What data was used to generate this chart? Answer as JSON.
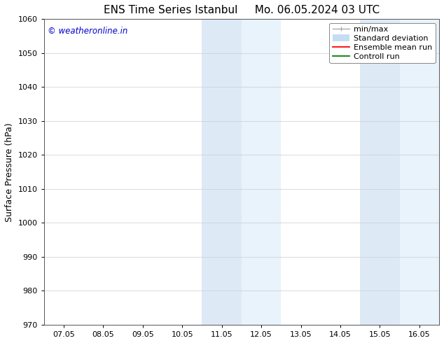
{
  "title_left": "ENS Time Series Istanbul",
  "title_right": "Mo. 06.05.2024 03 UTC",
  "ylabel": "Surface Pressure (hPa)",
  "ylim": [
    970,
    1060
  ],
  "yticks": [
    970,
    980,
    990,
    1000,
    1010,
    1020,
    1030,
    1040,
    1050,
    1060
  ],
  "xtick_labels": [
    "07.05",
    "08.05",
    "09.05",
    "10.05",
    "11.05",
    "12.05",
    "13.05",
    "14.05",
    "15.05",
    "16.05"
  ],
  "xtick_positions": [
    0,
    1,
    2,
    3,
    4,
    5,
    6,
    7,
    8,
    9
  ],
  "xlim_min": -0.5,
  "xlim_max": 9.5,
  "shaded_regions": [
    {
      "xmin": 3.5,
      "xmax": 4.5,
      "color": "#ddeaf6"
    },
    {
      "xmin": 4.5,
      "xmax": 5.5,
      "color": "#e8f3fb"
    },
    {
      "xmin": 7.5,
      "xmax": 8.5,
      "color": "#ddeaf6"
    },
    {
      "xmin": 8.5,
      "xmax": 9.5,
      "color": "#e8f3fb"
    }
  ],
  "watermark": "© weatheronline.in",
  "watermark_color": "#0000cc",
  "background_color": "#ffffff",
  "plot_bg_color": "#ffffff",
  "grid_color": "#cccccc",
  "tick_label_color": "#000000",
  "title_color": "#000000",
  "title_fontsize": 11,
  "tick_fontsize": 8,
  "ylabel_fontsize": 9,
  "legend_fontsize": 8
}
